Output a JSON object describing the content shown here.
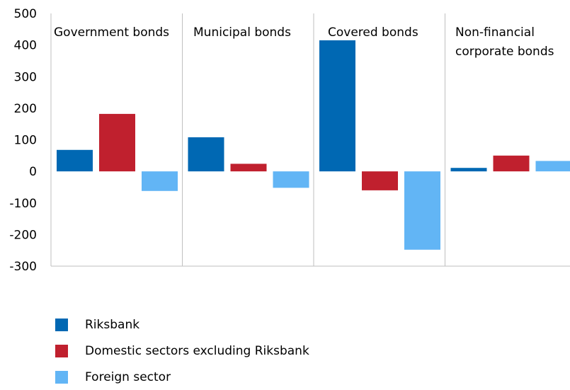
{
  "chart_data": {
    "type": "bar",
    "title": "",
    "xlabel": "",
    "ylabel": "",
    "ylim": [
      -300,
      500
    ],
    "yticks": [
      500,
      400,
      300,
      200,
      100,
      0,
      -100,
      -200,
      -300
    ],
    "ytick_labels": [
      "500",
      "400",
      "300",
      "200",
      "100",
      "0",
      "-100",
      "-200",
      "-300"
    ],
    "categories": [
      "Government bonds",
      "Municipal bonds",
      "Covered bonds",
      "Non-financial corporate bonds"
    ],
    "category_lines": [
      [
        "Government bonds"
      ],
      [
        "Municipal bonds"
      ],
      [
        "Covered bonds"
      ],
      [
        "Non-financial",
        "corporate bonds"
      ]
    ],
    "series": [
      {
        "name": "Riksbank",
        "color": "#0068b3",
        "values": [
          68,
          108,
          415,
          11
        ]
      },
      {
        "name": "Domestic sectors excluding Riksbank",
        "color": "#c0202e",
        "values": [
          182,
          24,
          -60,
          50
        ]
      },
      {
        "name": "Foreign sector",
        "color": "#62b5f5",
        "values": [
          -62,
          -52,
          -248,
          33
        ]
      }
    ],
    "grid": false,
    "legend_position": "bottom-left"
  }
}
